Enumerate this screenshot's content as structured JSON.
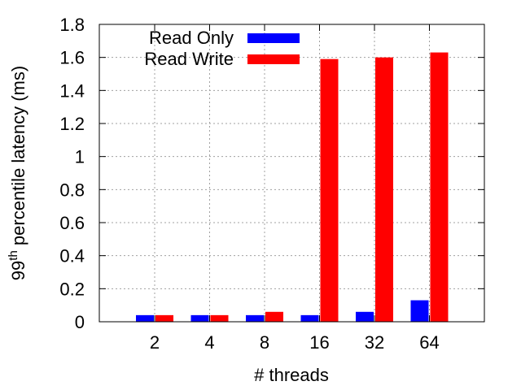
{
  "chart_data": {
    "type": "bar",
    "categories": [
      "2",
      "4",
      "8",
      "16",
      "32",
      "64"
    ],
    "series": [
      {
        "name": "Read Only",
        "color": "#0000ff",
        "values": [
          0.04,
          0.04,
          0.04,
          0.04,
          0.06,
          0.13
        ]
      },
      {
        "name": "Read Write",
        "color": "#ff0000",
        "values": [
          0.04,
          0.04,
          0.06,
          1.59,
          1.6,
          1.63
        ]
      }
    ],
    "xlabel": "# threads",
    "ylabel": {
      "base": "99",
      "superscript": "th",
      "rest": " percentile latency (ms)"
    },
    "ylim": [
      0,
      1.8
    ],
    "yticks": [
      "0",
      "0.2",
      "0.4",
      "0.6",
      "0.8",
      "1",
      "1.2",
      "1.4",
      "1.6",
      "1.8"
    ],
    "grid": true,
    "legend_position": "top-center"
  }
}
